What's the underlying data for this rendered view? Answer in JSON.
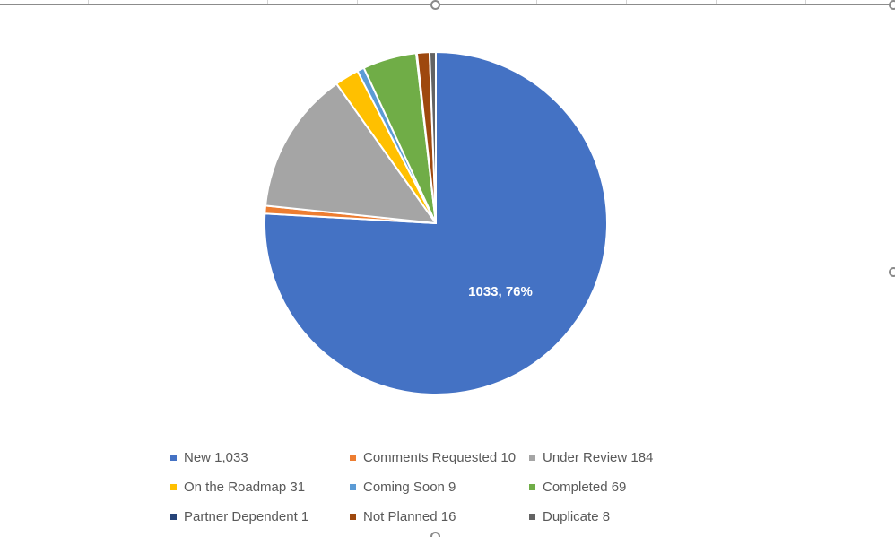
{
  "chart_data": {
    "type": "pie",
    "categories": [
      "New",
      "Comments Requested",
      "Under Review",
      "On the Roadmap",
      "Coming Soon",
      "Completed",
      "Partner Dependent",
      "Not Planned",
      "Duplicate"
    ],
    "values": [
      1033,
      10,
      184,
      31,
      9,
      69,
      1,
      16,
      8
    ],
    "colors": [
      "#4472C4",
      "#ED7D31",
      "#A5A5A5",
      "#FFC000",
      "#5B9BD5",
      "#70AD47",
      "#264478",
      "#9E480E",
      "#636363"
    ],
    "legend": [
      {
        "label": "New 1,033",
        "color": "#4472C4"
      },
      {
        "label": "Comments Requested 10",
        "color": "#ED7D31"
      },
      {
        "label": "Under Review 184",
        "color": "#A5A5A5"
      },
      {
        "label": "On the Roadmap 31",
        "color": "#FFC000"
      },
      {
        "label": "Coming Soon 9",
        "color": "#5B9BD5"
      },
      {
        "label": "Completed 69",
        "color": "#70AD47"
      },
      {
        "label": "Partner Dependent 1",
        "color": "#264478"
      },
      {
        "label": "Not Planned 16",
        "color": "#9E480E"
      },
      {
        "label": "Duplicate 8",
        "color": "#636363"
      }
    ],
    "data_labels": [
      {
        "category": "New",
        "text": "1033, 76%"
      }
    ],
    "legend_position": "bottom",
    "title": ""
  }
}
